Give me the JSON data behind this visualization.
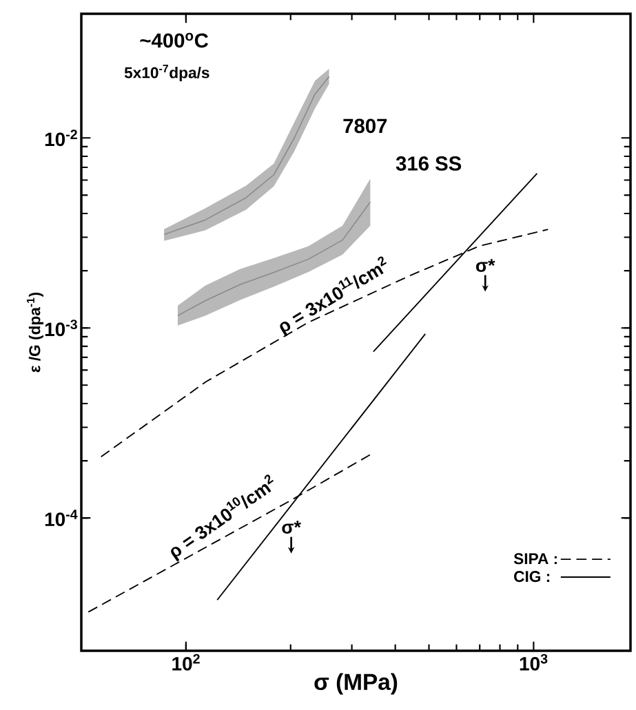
{
  "chart_data": {
    "type": "line",
    "xlabel": "σ  (MPa)",
    "ylabel": "ε /G (dpa$^{-1}$)",
    "log": "xy",
    "xlim": [
      50,
      1900
    ],
    "ylim": [
      2e-05,
      0.045
    ],
    "xticks": [
      {
        "value": 100,
        "label": "10$^{2}$"
      },
      {
        "value": 1000,
        "label": "10$^{3}$"
      }
    ],
    "yticks": [
      {
        "value": 0.0001,
        "label": "10$^{-4}$"
      },
      {
        "value": 0.001,
        "label": "10$^{-3}$"
      },
      {
        "value": 0.01,
        "label": "10$^{-2}$"
      }
    ],
    "legend": "bottom right",
    "annotations": [
      "~400$^{o}$C",
      "5x10$^{-7}$dpa/s",
      {
        "text": "ρ = 3x10$^{11}$/cm$^{2}$",
        "x": 280,
        "y": 0.00126
      },
      {
        "text": "ρ = 3x10$^{10}$/cm$^{2}$",
        "x": 136,
        "y": 8.5e-05
      },
      {
        "text": "σ*",
        "x": 700,
        "y": 0.0028
      },
      {
        "text": "σ*",
        "x": 196,
        "y": 0.00012
      }
    ],
    "series": [
      {
        "name": "SIPA :",
        "type": "line",
        "line_style": "dashed",
        "color": "#000000",
        "x": [
          57,
          114,
          225,
          445,
          700,
          1100
        ],
        "values": [
          0.00021,
          0.00052,
          0.00107,
          0.0019,
          0.0027,
          0.0033
        ]
      },
      {
        "name": "CIG :",
        "type": "line",
        "line_style": "solid",
        "color": "#000000",
        "x": [
          346,
          1023
        ],
        "values": [
          0.00075,
          0.0065
        ]
      },
      {
        "type": "line",
        "line_style": "dashed",
        "color": "#000000",
        "x": [
          52.4,
          196,
          346
        ],
        "values": [
          3.2e-05,
          0.000121,
          0.00022
        ]
      },
      {
        "type": "line",
        "line_style": "solid",
        "color": "#000000",
        "x": [
          123,
          488
        ],
        "values": [
          3.7e-05,
          0.00093
        ]
      },
      {
        "name": "7807",
        "type": "line",
        "line_style": "solid",
        "color": "#8a8a8a",
        "x": [
          86.5,
          113.6,
          149,
          179,
          205,
          235,
          258
        ],
        "values": [
          0.0031,
          0.0037,
          0.00485,
          0.0064,
          0.01,
          0.017,
          0.021
        ],
        "lower": [
          0.00287,
          0.00326,
          0.00419,
          0.00556,
          0.0085,
          0.0143,
          0.0192
        ],
        "upper": [
          0.00331,
          0.00426,
          0.00561,
          0.00733,
          0.0121,
          0.02,
          0.0231
        ]
      },
      {
        "name": "316 SS",
        "type": "line",
        "line_style": "solid",
        "color": "#8a8a8a",
        "x": [
          94.7,
          113.6,
          143,
          179,
          225,
          282,
          339
        ],
        "values": [
          0.00116,
          0.00139,
          0.00169,
          0.00196,
          0.0023,
          0.0029,
          0.0046
        ],
        "lower": [
          0.00103,
          0.00116,
          0.0014,
          0.00165,
          0.00197,
          0.00243,
          0.00345
        ],
        "upper": [
          0.00131,
          0.00167,
          0.00204,
          0.00233,
          0.00269,
          0.00345,
          0.0061
        ]
      }
    ]
  }
}
